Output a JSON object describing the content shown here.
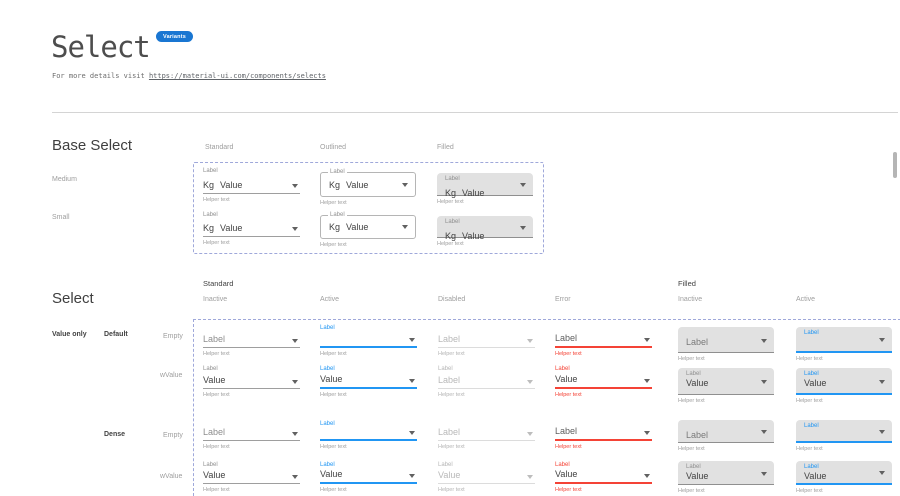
{
  "page": {
    "title": "Select",
    "badge": "Variants",
    "intro_prefix": "For more details visit ",
    "intro_link": "https://material-ui.com/components/selects"
  },
  "colors": {
    "accent_blue": "#2196F3",
    "badge_blue": "#1976D2",
    "error_red": "#F44336",
    "filled_bg": "#E1E1E1",
    "dashed_boundary": "#9FA8DA",
    "text_dark": "#424242",
    "text_gray": "#9e9e9e"
  },
  "base_select": {
    "title": "Base Select",
    "columns": [
      "Standard",
      "Outlined",
      "Filled"
    ],
    "rows": [
      "Medium",
      "Small"
    ],
    "cell": {
      "label": "Label",
      "prefix": "Kg",
      "value": "Value",
      "helper": "Helper text"
    }
  },
  "select_grid": {
    "title": "Select",
    "group_headers": [
      "Standard",
      "Filled"
    ],
    "columns": [
      "Inactive",
      "Active",
      "Disabled",
      "Error",
      "Inactive",
      "Active"
    ],
    "row_group": "Value only",
    "subgroups": [
      "Default",
      "Dense"
    ],
    "state_labels": [
      "Empty",
      "wValue",
      "Empty",
      "wValue"
    ],
    "rows": [
      {
        "name": "default-empty",
        "cells": [
          {
            "variant": "standard",
            "state": "inactive",
            "float": "",
            "text": "Label",
            "helper": "Helper text"
          },
          {
            "variant": "standard",
            "state": "active",
            "float": "Label",
            "text": "",
            "helper": "Helper text"
          },
          {
            "variant": "standard",
            "state": "disabled",
            "float": "",
            "text": "Label",
            "helper": "Helper text"
          },
          {
            "variant": "standard",
            "state": "error",
            "float": "",
            "text": "Label",
            "helper": "Helper text"
          },
          {
            "variant": "filled",
            "state": "inactive",
            "float": "",
            "text": "Label",
            "helper": "Helper text"
          },
          {
            "variant": "filled",
            "state": "active",
            "float": "Label",
            "text": "",
            "helper": "Helper text"
          }
        ]
      },
      {
        "name": "default-wvalue",
        "cells": [
          {
            "variant": "standard",
            "state": "inactive",
            "float": "Label",
            "text": "Value",
            "helper": "Helper text"
          },
          {
            "variant": "standard",
            "state": "active",
            "float": "Label",
            "text": "Value",
            "helper": "Helper text"
          },
          {
            "variant": "standard",
            "state": "disabled",
            "float": "Label",
            "text": "Label",
            "helper": "Helper text"
          },
          {
            "variant": "standard",
            "state": "error",
            "float": "Label",
            "text": "Value",
            "helper": "Helper text"
          },
          {
            "variant": "filled",
            "state": "inactive",
            "float": "Label",
            "text": "Value",
            "helper": "Helper text"
          },
          {
            "variant": "filled",
            "state": "active",
            "float": "Label",
            "text": "Value",
            "helper": "Helper text"
          }
        ]
      },
      {
        "name": "dense-empty",
        "cells": [
          {
            "variant": "standard",
            "state": "inactive",
            "float": "",
            "text": "Label",
            "helper": "Helper text"
          },
          {
            "variant": "standard",
            "state": "active",
            "float": "Label",
            "text": "",
            "helper": "Helper text"
          },
          {
            "variant": "standard",
            "state": "disabled",
            "float": "",
            "text": "Label",
            "helper": "Helper text"
          },
          {
            "variant": "standard",
            "state": "error",
            "float": "",
            "text": "Label",
            "helper": "Helper text"
          },
          {
            "variant": "filled",
            "state": "inactive",
            "float": "",
            "text": "Label",
            "helper": "Helper text"
          },
          {
            "variant": "filled",
            "state": "active",
            "float": "Label",
            "text": "",
            "helper": "Helper text"
          }
        ]
      },
      {
        "name": "dense-wvalue",
        "cells": [
          {
            "variant": "standard",
            "state": "inactive",
            "float": "Label",
            "text": "Value",
            "helper": "Helper text"
          },
          {
            "variant": "standard",
            "state": "active",
            "float": "Label",
            "text": "Value",
            "helper": "Helper text"
          },
          {
            "variant": "standard",
            "state": "disabled",
            "float": "Label",
            "text": "Value",
            "helper": "Helper text"
          },
          {
            "variant": "standard",
            "state": "error",
            "float": "Label",
            "text": "Value",
            "helper": "Helper text"
          },
          {
            "variant": "filled",
            "state": "inactive",
            "float": "Label",
            "text": "Value",
            "helper": "Helper text"
          },
          {
            "variant": "filled",
            "state": "active",
            "float": "Label",
            "text": "Value",
            "helper": "Helper text"
          }
        ]
      }
    ]
  }
}
